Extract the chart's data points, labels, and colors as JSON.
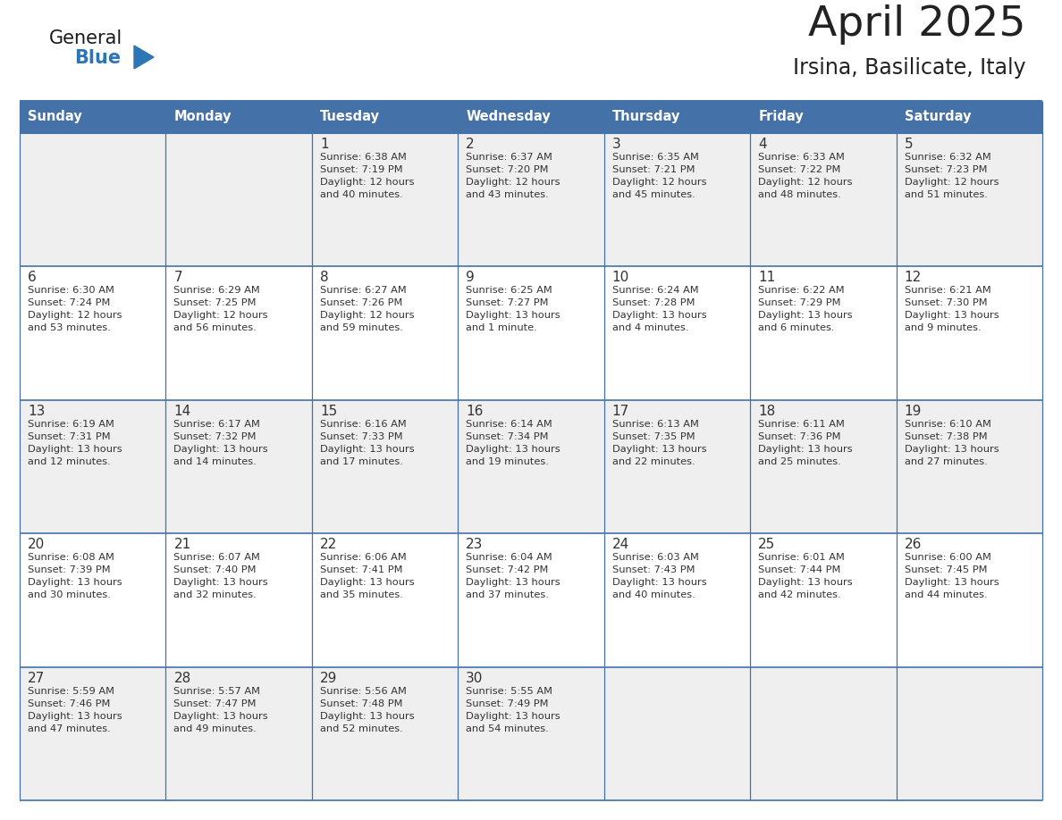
{
  "title": "April 2025",
  "subtitle": "Irsina, Basilicate, Italy",
  "days_of_week": [
    "Sunday",
    "Monday",
    "Tuesday",
    "Wednesday",
    "Thursday",
    "Friday",
    "Saturday"
  ],
  "header_bg": "#4472a8",
  "header_text": "#ffffff",
  "row_bg_odd": "#efefef",
  "row_bg_even": "#ffffff",
  "border_color": "#4472a8",
  "day_text_color": "#333333",
  "info_text_color": "#333333",
  "title_color": "#222222",
  "calendar": [
    [
      {
        "day": "",
        "info": ""
      },
      {
        "day": "",
        "info": ""
      },
      {
        "day": "1",
        "info": "Sunrise: 6:38 AM\nSunset: 7:19 PM\nDaylight: 12 hours\nand 40 minutes."
      },
      {
        "day": "2",
        "info": "Sunrise: 6:37 AM\nSunset: 7:20 PM\nDaylight: 12 hours\nand 43 minutes."
      },
      {
        "day": "3",
        "info": "Sunrise: 6:35 AM\nSunset: 7:21 PM\nDaylight: 12 hours\nand 45 minutes."
      },
      {
        "day": "4",
        "info": "Sunrise: 6:33 AM\nSunset: 7:22 PM\nDaylight: 12 hours\nand 48 minutes."
      },
      {
        "day": "5",
        "info": "Sunrise: 6:32 AM\nSunset: 7:23 PM\nDaylight: 12 hours\nand 51 minutes."
      }
    ],
    [
      {
        "day": "6",
        "info": "Sunrise: 6:30 AM\nSunset: 7:24 PM\nDaylight: 12 hours\nand 53 minutes."
      },
      {
        "day": "7",
        "info": "Sunrise: 6:29 AM\nSunset: 7:25 PM\nDaylight: 12 hours\nand 56 minutes."
      },
      {
        "day": "8",
        "info": "Sunrise: 6:27 AM\nSunset: 7:26 PM\nDaylight: 12 hours\nand 59 minutes."
      },
      {
        "day": "9",
        "info": "Sunrise: 6:25 AM\nSunset: 7:27 PM\nDaylight: 13 hours\nand 1 minute."
      },
      {
        "day": "10",
        "info": "Sunrise: 6:24 AM\nSunset: 7:28 PM\nDaylight: 13 hours\nand 4 minutes."
      },
      {
        "day": "11",
        "info": "Sunrise: 6:22 AM\nSunset: 7:29 PM\nDaylight: 13 hours\nand 6 minutes."
      },
      {
        "day": "12",
        "info": "Sunrise: 6:21 AM\nSunset: 7:30 PM\nDaylight: 13 hours\nand 9 minutes."
      }
    ],
    [
      {
        "day": "13",
        "info": "Sunrise: 6:19 AM\nSunset: 7:31 PM\nDaylight: 13 hours\nand 12 minutes."
      },
      {
        "day": "14",
        "info": "Sunrise: 6:17 AM\nSunset: 7:32 PM\nDaylight: 13 hours\nand 14 minutes."
      },
      {
        "day": "15",
        "info": "Sunrise: 6:16 AM\nSunset: 7:33 PM\nDaylight: 13 hours\nand 17 minutes."
      },
      {
        "day": "16",
        "info": "Sunrise: 6:14 AM\nSunset: 7:34 PM\nDaylight: 13 hours\nand 19 minutes."
      },
      {
        "day": "17",
        "info": "Sunrise: 6:13 AM\nSunset: 7:35 PM\nDaylight: 13 hours\nand 22 minutes."
      },
      {
        "day": "18",
        "info": "Sunrise: 6:11 AM\nSunset: 7:36 PM\nDaylight: 13 hours\nand 25 minutes."
      },
      {
        "day": "19",
        "info": "Sunrise: 6:10 AM\nSunset: 7:38 PM\nDaylight: 13 hours\nand 27 minutes."
      }
    ],
    [
      {
        "day": "20",
        "info": "Sunrise: 6:08 AM\nSunset: 7:39 PM\nDaylight: 13 hours\nand 30 minutes."
      },
      {
        "day": "21",
        "info": "Sunrise: 6:07 AM\nSunset: 7:40 PM\nDaylight: 13 hours\nand 32 minutes."
      },
      {
        "day": "22",
        "info": "Sunrise: 6:06 AM\nSunset: 7:41 PM\nDaylight: 13 hours\nand 35 minutes."
      },
      {
        "day": "23",
        "info": "Sunrise: 6:04 AM\nSunset: 7:42 PM\nDaylight: 13 hours\nand 37 minutes."
      },
      {
        "day": "24",
        "info": "Sunrise: 6:03 AM\nSunset: 7:43 PM\nDaylight: 13 hours\nand 40 minutes."
      },
      {
        "day": "25",
        "info": "Sunrise: 6:01 AM\nSunset: 7:44 PM\nDaylight: 13 hours\nand 42 minutes."
      },
      {
        "day": "26",
        "info": "Sunrise: 6:00 AM\nSunset: 7:45 PM\nDaylight: 13 hours\nand 44 minutes."
      }
    ],
    [
      {
        "day": "27",
        "info": "Sunrise: 5:59 AM\nSunset: 7:46 PM\nDaylight: 13 hours\nand 47 minutes."
      },
      {
        "day": "28",
        "info": "Sunrise: 5:57 AM\nSunset: 7:47 PM\nDaylight: 13 hours\nand 49 minutes."
      },
      {
        "day": "29",
        "info": "Sunrise: 5:56 AM\nSunset: 7:48 PM\nDaylight: 13 hours\nand 52 minutes."
      },
      {
        "day": "30",
        "info": "Sunrise: 5:55 AM\nSunset: 7:49 PM\nDaylight: 13 hours\nand 54 minutes."
      },
      {
        "day": "",
        "info": ""
      },
      {
        "day": "",
        "info": ""
      },
      {
        "day": "",
        "info": ""
      }
    ]
  ],
  "logo_triangle_color": "#2e75b6",
  "logo_general_color": "#1a1a1a",
  "logo_blue_color": "#2e75b6"
}
